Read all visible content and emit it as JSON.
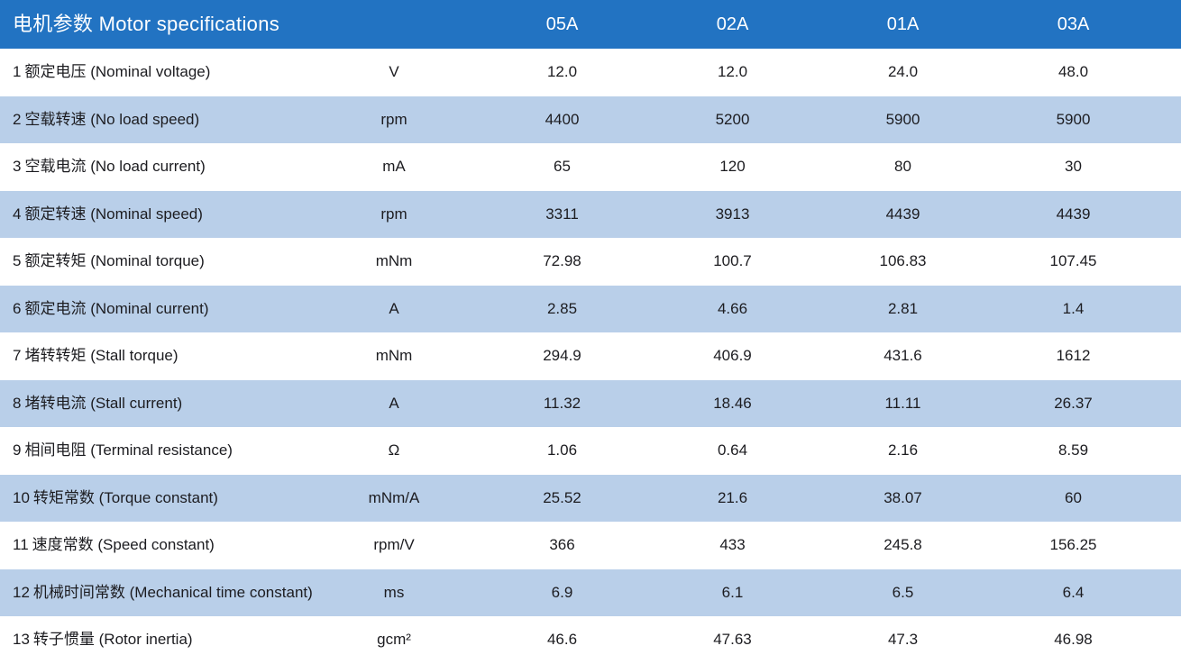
{
  "table": {
    "title": "电机参数 Motor specifications",
    "columns": [
      "05A",
      "02A",
      "01A",
      "03A"
    ],
    "rows": [
      {
        "no": "1",
        "param": "额定电压 (Nominal voltage)",
        "unit": "V",
        "values": [
          "12.0",
          "12.0",
          "24.0",
          "48.0"
        ]
      },
      {
        "no": "2",
        "param": "空载转速 (No load speed)",
        "unit": "rpm",
        "values": [
          "4400",
          "5200",
          "5900",
          "5900"
        ]
      },
      {
        "no": "3",
        "param": "空载电流 (No load current)",
        "unit": "mA",
        "values": [
          "65",
          "120",
          "80",
          "30"
        ]
      },
      {
        "no": "4",
        "param": "额定转速 (Nominal speed)",
        "unit": "rpm",
        "values": [
          "3311",
          "3913",
          "4439",
          "4439"
        ]
      },
      {
        "no": "5",
        "param": "额定转矩 (Nominal torque)",
        "unit": "mNm",
        "values": [
          "72.98",
          "100.7",
          "106.83",
          "107.45"
        ]
      },
      {
        "no": "6",
        "param": "额定电流 (Nominal current)",
        "unit": "A",
        "values": [
          "2.85",
          "4.66",
          "2.81",
          "1.4"
        ]
      },
      {
        "no": "7",
        "param": "堵转转矩 (Stall torque)",
        "unit": "mNm",
        "values": [
          "294.9",
          "406.9",
          "431.6",
          "1612"
        ]
      },
      {
        "no": "8",
        "param": "堵转电流 (Stall current)",
        "unit": "A",
        "values": [
          "11.32",
          "18.46",
          "11.11",
          "26.37"
        ]
      },
      {
        "no": "9",
        "param": "相间电阻 (Terminal resistance)",
        "unit": "Ω",
        "values": [
          "1.06",
          "0.64",
          "2.16",
          "8.59"
        ]
      },
      {
        "no": "10",
        "param": "转矩常数 (Torque constant)",
        "unit": "mNm/A",
        "values": [
          "25.52",
          "21.6",
          "38.07",
          "60"
        ]
      },
      {
        "no": "11",
        "param": "速度常数 (Speed constant)",
        "unit": "rpm/V",
        "values": [
          "366",
          "433",
          "245.8",
          "156.25"
        ]
      },
      {
        "no": "12",
        "param": "机械时间常数 (Mechanical time constant)",
        "unit": "ms",
        "values": [
          "6.9",
          "6.1",
          "6.5",
          "6.4"
        ]
      },
      {
        "no": "13",
        "param": "转子惯量 (Rotor inertia)",
        "unit": "gcm²",
        "values": [
          "46.6",
          "47.63",
          "47.3",
          "46.98"
        ]
      }
    ],
    "colors": {
      "header_bg": "#2273c2",
      "row_alt_bg": "#b9cfe9",
      "row_bg": "#ffffff",
      "header_text": "#ffffff",
      "body_text": "#1c1c20"
    }
  }
}
